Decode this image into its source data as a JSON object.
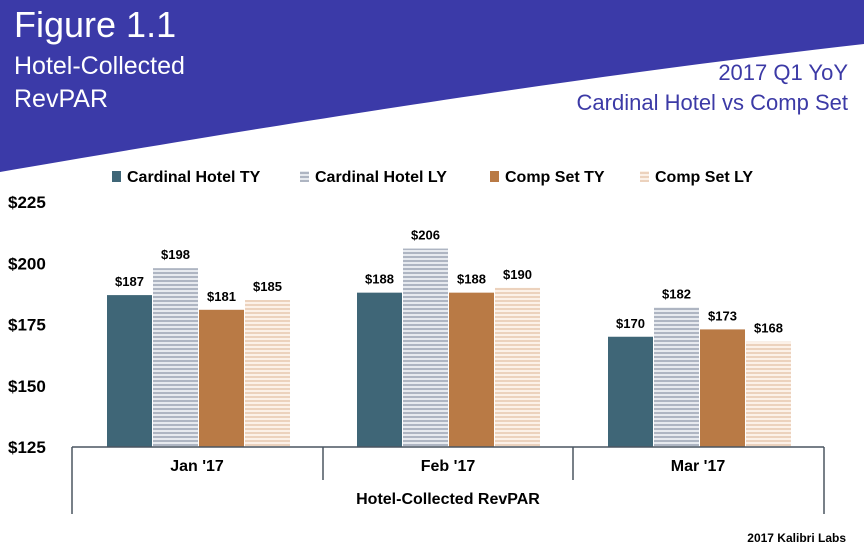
{
  "header": {
    "title": "Figure 1.1",
    "subtitle_line1": "Hotel-Collected",
    "subtitle_line2": "RevPAR",
    "right_line1": "2017 Q1 YoY",
    "right_line2": "Cardinal Hotel vs Comp Set",
    "band_color": "#3b3aa8"
  },
  "credit": "2017 Kalibri Labs",
  "chart_data": {
    "type": "bar",
    "categories": [
      "Jan '17",
      "Feb '17",
      "Mar '17"
    ],
    "series": [
      {
        "name": "Cardinal Hotel TY",
        "values": [
          187,
          188,
          170
        ],
        "labels": [
          "$187",
          "$188",
          "$170"
        ],
        "color": "#3f6677",
        "pattern": "solid"
      },
      {
        "name": "Cardinal Hotel LY",
        "values": [
          198,
          206,
          182
        ],
        "labels": [
          "$198",
          "$206",
          "$182"
        ],
        "color": "#c3c9d3",
        "pattern": "striped"
      },
      {
        "name": "Comp Set TY",
        "values": [
          181,
          188,
          173
        ],
        "labels": [
          "$181",
          "$188",
          "$173"
        ],
        "color": "#b97a45",
        "pattern": "solid"
      },
      {
        "name": "Comp Set LY",
        "values": [
          185,
          190,
          168
        ],
        "labels": [
          "$185",
          "$190",
          "$168"
        ],
        "color": "#f2d9c4",
        "pattern": "striped"
      }
    ],
    "xlabel": "Hotel-Collected RevPAR",
    "ylabel": "",
    "ylim": [
      125,
      225
    ],
    "yticks": [
      125,
      150,
      175,
      200,
      225
    ],
    "ytick_labels": [
      "$125",
      "$150",
      "$175",
      "$200",
      "$225"
    ],
    "legend_position": "top",
    "grid": false
  }
}
